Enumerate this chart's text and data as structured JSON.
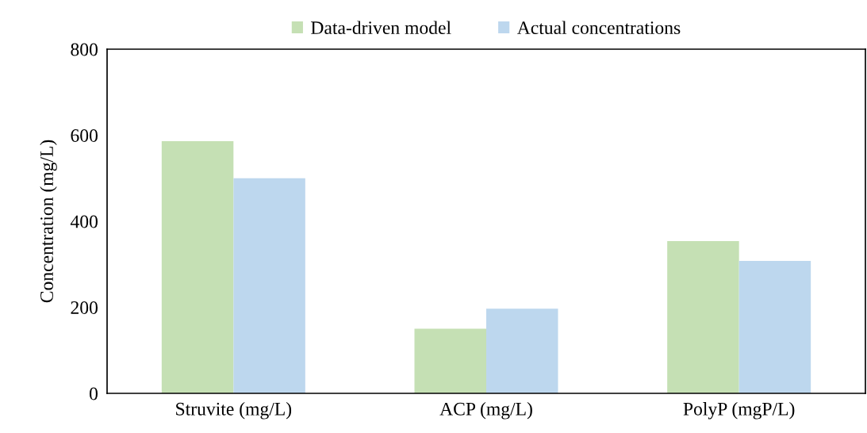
{
  "chart_data": {
    "type": "bar",
    "ylabel": "Concentration (mg/L)",
    "categories": [
      "Struvite (mg/L)",
      "ACP (mg/L)",
      "PolyP (mgP/L)"
    ],
    "series": [
      {
        "name": "Data-driven model",
        "color": "#c5e0b4",
        "values": [
          586,
          150,
          354
        ]
      },
      {
        "name": "Actual concentrations",
        "color": "#bdd7ee",
        "values": [
          500,
          197,
          308
        ]
      }
    ],
    "ylim": [
      0,
      800
    ],
    "yticks": [
      0,
      200,
      400,
      600,
      800
    ],
    "grid": false,
    "legend": "top"
  }
}
